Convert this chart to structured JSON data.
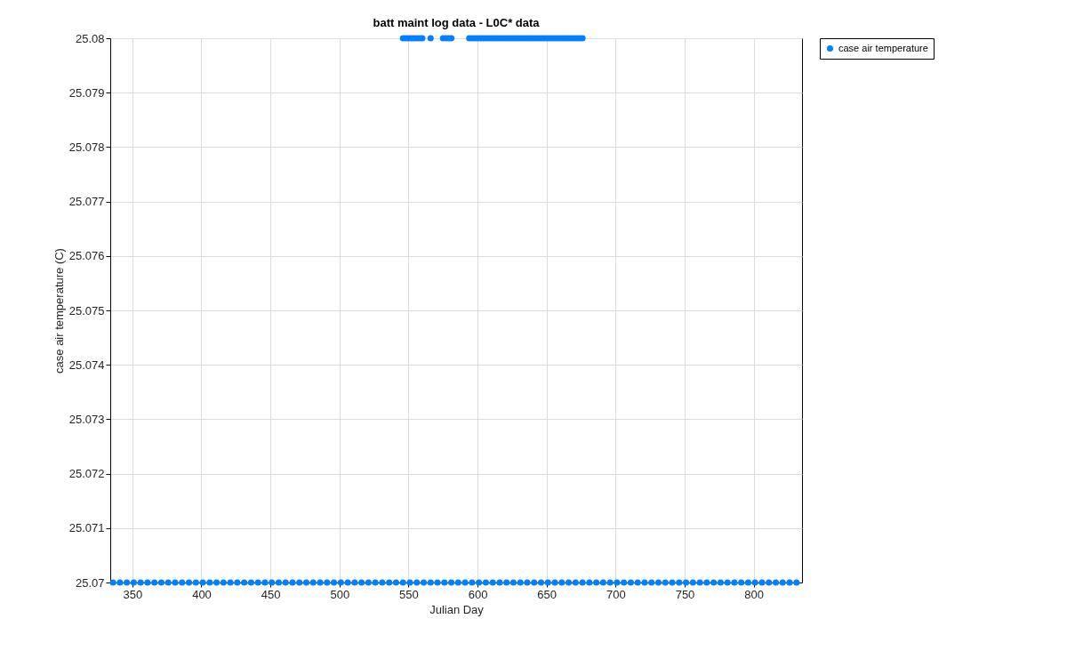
{
  "chart_data": {
    "type": "scatter",
    "title": "batt maint log data - L0C* data",
    "xlabel": "Julian Day",
    "ylabel": "case air temperature (C)",
    "xlim": [
      334,
      835
    ],
    "xticks": [
      350,
      400,
      450,
      500,
      550,
      600,
      650,
      700,
      750,
      800
    ],
    "ylim": [
      25.07,
      25.08
    ],
    "yticks": [
      25.07,
      25.071,
      25.072,
      25.073,
      25.074,
      25.075,
      25.076,
      25.077,
      25.078,
      25.079,
      25.08
    ],
    "grid": true,
    "legend": "top right",
    "marker": "circle",
    "series": [
      {
        "name": "case air temperature",
        "color": "#0080ff",
        "x": [
          336,
          341,
          346,
          351,
          356,
          361,
          366,
          371,
          376,
          381,
          386,
          391,
          396,
          401,
          406,
          411,
          416,
          421,
          426,
          431,
          436,
          441,
          446,
          451,
          456,
          461,
          466,
          471,
          476,
          481,
          486,
          491,
          496,
          501,
          506,
          511,
          516,
          521,
          526,
          531,
          536,
          541,
          546,
          551,
          556,
          561,
          566,
          571,
          576,
          581,
          586,
          591,
          596,
          601,
          606,
          611,
          616,
          621,
          626,
          631,
          636,
          641,
          646,
          651,
          656,
          661,
          666,
          671,
          676,
          681,
          686,
          691,
          696,
          701,
          706,
          711,
          716,
          721,
          726,
          731,
          736,
          741,
          746,
          751,
          756,
          761,
          766,
          771,
          776,
          781,
          786,
          791,
          796,
          801,
          806,
          811,
          816,
          821,
          826,
          831,
          546,
          548,
          550,
          552,
          554,
          556,
          558,
          560,
          566,
          575,
          577,
          579,
          581,
          594,
          596,
          598,
          600,
          602,
          604,
          606,
          608,
          610,
          612,
          614,
          616,
          618,
          620,
          622,
          624,
          626,
          628,
          630,
          632,
          634,
          636,
          638,
          640,
          642,
          644,
          646,
          648,
          650,
          652,
          654,
          656,
          658,
          660,
          662,
          664,
          666,
          668,
          670,
          672,
          674,
          676
        ],
        "values": [
          25.07,
          25.07,
          25.07,
          25.07,
          25.07,
          25.07,
          25.07,
          25.07,
          25.07,
          25.07,
          25.07,
          25.07,
          25.07,
          25.07,
          25.07,
          25.07,
          25.07,
          25.07,
          25.07,
          25.07,
          25.07,
          25.07,
          25.07,
          25.07,
          25.07,
          25.07,
          25.07,
          25.07,
          25.07,
          25.07,
          25.07,
          25.07,
          25.07,
          25.07,
          25.07,
          25.07,
          25.07,
          25.07,
          25.07,
          25.07,
          25.07,
          25.07,
          25.07,
          25.07,
          25.07,
          25.07,
          25.07,
          25.07,
          25.07,
          25.07,
          25.07,
          25.07,
          25.07,
          25.07,
          25.07,
          25.07,
          25.07,
          25.07,
          25.07,
          25.07,
          25.07,
          25.07,
          25.07,
          25.07,
          25.07,
          25.07,
          25.07,
          25.07,
          25.07,
          25.07,
          25.07,
          25.07,
          25.07,
          25.07,
          25.07,
          25.07,
          25.07,
          25.07,
          25.07,
          25.07,
          25.07,
          25.07,
          25.07,
          25.07,
          25.07,
          25.07,
          25.07,
          25.07,
          25.07,
          25.07,
          25.07,
          25.07,
          25.07,
          25.07,
          25.07,
          25.07,
          25.07,
          25.07,
          25.07,
          25.07,
          25.08,
          25.08,
          25.08,
          25.08,
          25.08,
          25.08,
          25.08,
          25.08,
          25.08,
          25.08,
          25.08,
          25.08,
          25.08,
          25.08,
          25.08,
          25.08,
          25.08,
          25.08,
          25.08,
          25.08,
          25.08,
          25.08,
          25.08,
          25.08,
          25.08,
          25.08,
          25.08,
          25.08,
          25.08,
          25.08,
          25.08,
          25.08,
          25.08,
          25.08,
          25.08,
          25.08,
          25.08,
          25.08,
          25.08,
          25.08,
          25.08,
          25.08,
          25.08,
          25.08,
          25.08,
          25.08,
          25.08,
          25.08,
          25.08,
          25.08,
          25.08,
          25.08,
          25.08,
          25.08,
          25.08
        ]
      }
    ]
  }
}
